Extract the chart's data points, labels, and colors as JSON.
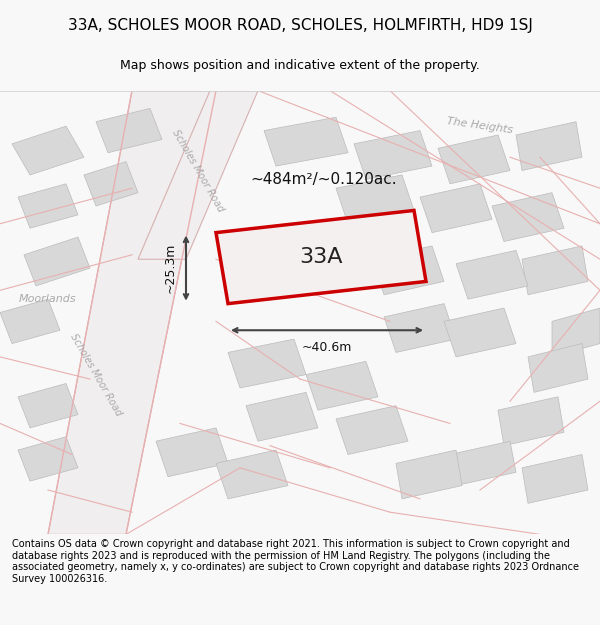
{
  "title": "33A, SCHOLES MOOR ROAD, SCHOLES, HOLMFIRTH, HD9 1SJ",
  "subtitle": "Map shows position and indicative extent of the property.",
  "footer": "Contains OS data © Crown copyright and database right 2021. This information is subject to Crown copyright and database rights 2023 and is reproduced with the permission of HM Land Registry. The polygons (including the associated geometry, namely x, y co-ordinates) are subject to Crown copyright and database rights 2023 Ordnance Survey 100026316.",
  "bg_color": "#f8f8f8",
  "map_bg": "#f0eeee",
  "road_line_color": "#e8b0b0",
  "building_color": "#d8d8d8",
  "building_edge": "#bbbbbb",
  "highlight_color": "#cc0000",
  "highlight_fill": "#f5f0f0",
  "area_label": "~484m²/~0.120ac.",
  "width_label": "~40.6m",
  "height_label": "~25.3m",
  "plot_label": "33A",
  "road_label_top": "Scholes Moor Road",
  "road_label_bottom": "Scholes Moor Road",
  "label_heights": "The Heights",
  "label_moorlands": "Moorlands",
  "title_fontsize": 11,
  "subtitle_fontsize": 9,
  "footer_fontsize": 7
}
